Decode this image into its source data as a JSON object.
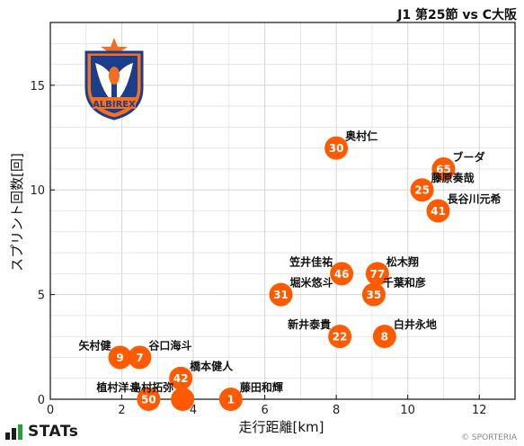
{
  "header": {
    "match_title": "J1 第25節 vs C大阪"
  },
  "footer": {
    "brand": "STATs",
    "copyright": "© SPORTERIA"
  },
  "colors": {
    "marker": "#ff5a00",
    "grid": "#d9d9d9",
    "frame": "#111111",
    "logo_blue": "#1c3e8a",
    "logo_orange": "#f36f21"
  },
  "icons": {
    "team_logo": "albirex-crest-icon",
    "brand_logo": "stats-bars-icon"
  },
  "chart_data": {
    "type": "scatter",
    "xlabel": "走行距離[km]",
    "ylabel": "スプリント回数[回]",
    "xlim": [
      0,
      13
    ],
    "ylim": [
      0,
      18
    ],
    "x_ticks": [
      0,
      2,
      4,
      6,
      8,
      10,
      12
    ],
    "y_ticks": [
      0,
      5,
      10,
      15
    ],
    "minor_grid_x": 1,
    "minor_grid_y": 1,
    "grid": true,
    "points": [
      {
        "number": "30",
        "name": "奥村仁",
        "x": 8.0,
        "y": 12,
        "label_pos": "right-up"
      },
      {
        "number": "65",
        "name": "ブーダ",
        "x": 11.0,
        "y": 11,
        "label_pos": "right-up"
      },
      {
        "number": "25",
        "name": "藤原奏哉",
        "x": 10.4,
        "y": 10,
        "label_pos": "right-up"
      },
      {
        "number": "41",
        "name": "長谷川元希",
        "x": 10.85,
        "y": 9,
        "label_pos": "right-up"
      },
      {
        "number": "46",
        "name": "笠井佳祐",
        "x": 8.15,
        "y": 6,
        "label_pos": "left-up"
      },
      {
        "number": "77",
        "name": "松木翔",
        "x": 9.15,
        "y": 6,
        "label_pos": "right-up"
      },
      {
        "number": "31",
        "name": "堀米悠斗",
        "x": 6.45,
        "y": 5,
        "label_pos": "right-up"
      },
      {
        "number": "35",
        "name": "千葉和彦",
        "x": 9.05,
        "y": 5,
        "label_pos": "right-up"
      },
      {
        "number": "22",
        "name": "新井泰貴",
        "x": 8.1,
        "y": 3,
        "label_pos": "left-up"
      },
      {
        "number": "8",
        "name": "白井永地",
        "x": 9.35,
        "y": 3,
        "label_pos": "right-up"
      },
      {
        "number": "9",
        "name": "矢村健",
        "x": 1.95,
        "y": 2,
        "label_pos": "left-up"
      },
      {
        "number": "7",
        "name": "谷口海斗",
        "x": 2.5,
        "y": 2,
        "label_pos": "right-up"
      },
      {
        "number": "42",
        "name": "橋本健人",
        "x": 3.65,
        "y": 1,
        "label_pos": "right-up"
      },
      {
        "number": "50",
        "name": "植村洋斗",
        "x": 2.75,
        "y": 0,
        "label_pos": "left-up"
      },
      {
        "number": "",
        "name": "島村拓弥",
        "x": 3.7,
        "y": 0,
        "label_pos": "left-up"
      },
      {
        "number": "1",
        "name": "藤田和輝",
        "x": 5.05,
        "y": 0,
        "label_pos": "right-up"
      }
    ]
  }
}
